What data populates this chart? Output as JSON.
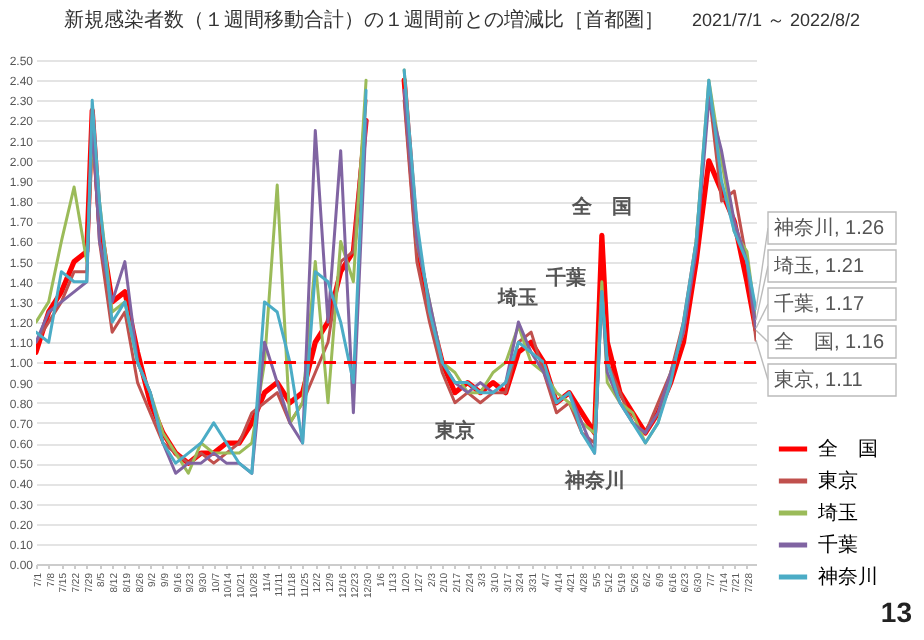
{
  "chart_data": {
    "type": "line",
    "title": "新規感染者数（１週間移動合計）の１週間前との増減比［首都圏］",
    "subtitle": "2021/7/1 ～ 2022/8/2",
    "x": [
      "2021-07-01",
      "2021-07-08",
      "2021-07-15",
      "2021-07-22",
      "2021-07-29",
      "2021-08-01",
      "2021-08-05",
      "2021-08-12",
      "2021-08-19",
      "2021-08-26",
      "2021-09-02",
      "2021-09-09",
      "2021-09-16",
      "2021-09-23",
      "2021-09-30",
      "2021-10-07",
      "2021-10-14",
      "2021-10-21",
      "2021-10-28",
      "2021-11-04",
      "2021-11-11",
      "2021-11-18",
      "2021-11-25",
      "2021-12-02",
      "2021-12-09",
      "2021-12-16",
      "2021-12-23",
      "2021-12-30",
      "2022-01-06",
      "2022-01-13",
      "2022-01-20",
      "2022-01-27",
      "2022-02-03",
      "2022-02-10",
      "2022-02-17",
      "2022-02-24",
      "2022-03-03",
      "2022-03-10",
      "2022-03-17",
      "2022-03-24",
      "2022-03-31",
      "2022-04-07",
      "2022-04-14",
      "2022-04-21",
      "2022-04-28",
      "2022-05-05",
      "2022-05-09",
      "2022-05-12",
      "2022-05-19",
      "2022-05-26",
      "2022-06-02",
      "2022-06-09",
      "2022-06-16",
      "2022-06-23",
      "2022-06-30",
      "2022-07-07",
      "2022-07-14",
      "2022-07-21",
      "2022-07-28",
      "2022-08-02"
    ],
    "series": [
      {
        "name": "全　国",
        "color": "#ff0000",
        "values": [
          1.05,
          1.25,
          1.35,
          1.5,
          1.55,
          2.25,
          1.7,
          1.3,
          1.35,
          1.05,
          0.8,
          0.65,
          0.55,
          0.5,
          0.55,
          0.55,
          0.6,
          0.6,
          0.7,
          0.85,
          0.9,
          0.8,
          0.85,
          1.1,
          1.2,
          1.45,
          1.55,
          2.2,
          null,
          null,
          2.4,
          1.6,
          1.25,
          1.0,
          0.85,
          0.9,
          0.85,
          0.9,
          0.85,
          1.05,
          1.1,
          1.0,
          0.8,
          0.85,
          0.75,
          0.65,
          1.63,
          1.1,
          0.85,
          0.75,
          0.65,
          0.75,
          0.9,
          1.1,
          1.5,
          2.0,
          1.85,
          1.7,
          1.4,
          1.16
        ]
      },
      {
        "name": "東京",
        "color": "#c0504d",
        "values": [
          1.1,
          1.2,
          1.3,
          1.45,
          1.45,
          2.2,
          1.6,
          1.15,
          1.25,
          0.9,
          0.75,
          0.6,
          0.55,
          0.5,
          0.55,
          0.5,
          0.55,
          0.6,
          0.75,
          0.8,
          0.85,
          0.7,
          0.8,
          0.95,
          1.1,
          1.5,
          1.55,
          2.3,
          null,
          null,
          2.3,
          1.5,
          1.2,
          0.95,
          0.8,
          0.85,
          0.8,
          0.85,
          0.85,
          1.1,
          1.15,
          0.95,
          0.75,
          0.8,
          0.65,
          0.6,
          1.35,
          1.0,
          0.85,
          0.7,
          0.65,
          0.8,
          0.95,
          1.2,
          1.6,
          2.35,
          1.8,
          1.85,
          1.5,
          1.11
        ]
      },
      {
        "name": "埼玉",
        "color": "#9bbb59",
        "values": [
          1.2,
          1.3,
          1.6,
          1.87,
          1.5,
          2.1,
          1.8,
          1.25,
          1.3,
          1.0,
          0.85,
          0.65,
          0.55,
          0.45,
          0.6,
          0.55,
          0.55,
          0.55,
          0.6,
          1.0,
          1.88,
          0.7,
          0.8,
          1.5,
          0.8,
          1.6,
          1.4,
          2.4,
          null,
          null,
          2.45,
          1.6,
          1.3,
          1.0,
          0.95,
          0.85,
          0.85,
          0.95,
          1.0,
          1.18,
          1.0,
          0.95,
          0.85,
          0.8,
          0.7,
          0.65,
          1.4,
          0.9,
          0.8,
          0.75,
          0.6,
          0.7,
          0.95,
          1.15,
          1.6,
          2.4,
          2.0,
          1.65,
          1.55,
          1.21
        ]
      },
      {
        "name": "千葉",
        "color": "#8064a2",
        "values": [
          1.1,
          1.25,
          1.3,
          1.35,
          1.4,
          2.2,
          1.6,
          1.3,
          1.5,
          1.0,
          0.85,
          0.6,
          0.45,
          0.5,
          0.5,
          0.55,
          0.5,
          0.5,
          0.45,
          1.1,
          0.9,
          0.7,
          0.6,
          2.15,
          1.2,
          2.05,
          0.75,
          2.2,
          null,
          null,
          2.35,
          1.6,
          1.3,
          1.0,
          0.9,
          0.85,
          0.9,
          0.85,
          0.9,
          1.2,
          1.05,
          0.95,
          0.8,
          0.85,
          0.7,
          0.55,
          1.35,
          0.95,
          0.8,
          0.7,
          0.65,
          0.75,
          0.95,
          1.15,
          1.55,
          2.3,
          2.05,
          1.7,
          1.5,
          1.17
        ]
      },
      {
        "name": "神奈川",
        "color": "#4bacc6",
        "values": [
          1.15,
          1.1,
          1.45,
          1.4,
          1.4,
          2.3,
          1.8,
          1.2,
          1.3,
          1.0,
          0.85,
          0.6,
          0.5,
          0.55,
          0.6,
          0.7,
          0.6,
          0.5,
          0.45,
          1.3,
          1.25,
          1.0,
          0.6,
          1.45,
          1.4,
          1.2,
          0.9,
          2.35,
          null,
          null,
          2.45,
          1.7,
          1.25,
          1.0,
          0.9,
          0.9,
          0.85,
          0.85,
          0.9,
          1.1,
          1.05,
          1.0,
          0.8,
          0.85,
          0.65,
          0.55,
          1.35,
          1.0,
          0.8,
          0.7,
          0.6,
          0.7,
          0.9,
          1.2,
          1.6,
          2.4,
          1.9,
          1.65,
          1.5,
          1.26
        ]
      }
    ],
    "xlim": [
      "2021-07-01",
      "2022-08-02"
    ],
    "xticks": [
      {
        "value": "2021-07-01",
        "label": "7/1"
      },
      {
        "value": "2021-07-08",
        "label": "7/8"
      },
      {
        "value": "2021-07-15",
        "label": "7/15"
      },
      {
        "value": "2021-07-22",
        "label": "7/22"
      },
      {
        "value": "2021-07-29",
        "label": "7/29"
      },
      {
        "value": "2021-08-05",
        "label": "8/5"
      },
      {
        "value": "2021-08-12",
        "label": "8/12"
      },
      {
        "value": "2021-08-19",
        "label": "8/19"
      },
      {
        "value": "2021-08-26",
        "label": "8/26"
      },
      {
        "value": "2021-09-02",
        "label": "9/2"
      },
      {
        "value": "2021-09-09",
        "label": "9/9"
      },
      {
        "value": "2021-09-16",
        "label": "9/16"
      },
      {
        "value": "2021-09-23",
        "label": "9/23"
      },
      {
        "value": "2021-09-30",
        "label": "9/30"
      },
      {
        "value": "2021-10-07",
        "label": "10/7"
      },
      {
        "value": "2021-10-14",
        "label": "10/14"
      },
      {
        "value": "2021-10-21",
        "label": "10/21"
      },
      {
        "value": "2021-10-28",
        "label": "10/28"
      },
      {
        "value": "2021-11-04",
        "label": "11/4"
      },
      {
        "value": "2021-11-11",
        "label": "11/11"
      },
      {
        "value": "2021-11-18",
        "label": "11/18"
      },
      {
        "value": "2021-11-25",
        "label": "11/25"
      },
      {
        "value": "2021-12-02",
        "label": "12/2"
      },
      {
        "value": "2021-12-09",
        "label": "12/9"
      },
      {
        "value": "2021-12-16",
        "label": "12/16"
      },
      {
        "value": "2021-12-23",
        "label": "12/23"
      },
      {
        "value": "2021-12-30",
        "label": "12/30"
      },
      {
        "value": "2022-01-06",
        "label": "1/6"
      },
      {
        "value": "2022-01-13",
        "label": "1/13"
      },
      {
        "value": "2022-01-20",
        "label": "1/20"
      },
      {
        "value": "2022-01-27",
        "label": "1/27"
      },
      {
        "value": "2022-02-03",
        "label": "2/3"
      },
      {
        "value": "2022-02-10",
        "label": "2/10"
      },
      {
        "value": "2022-02-17",
        "label": "2/17"
      },
      {
        "value": "2022-02-24",
        "label": "2/24"
      },
      {
        "value": "2022-03-03",
        "label": "3/3"
      },
      {
        "value": "2022-03-10",
        "label": "3/10"
      },
      {
        "value": "2022-03-17",
        "label": "3/17"
      },
      {
        "value": "2022-03-24",
        "label": "3/24"
      },
      {
        "value": "2022-03-31",
        "label": "3/31"
      },
      {
        "value": "2022-04-07",
        "label": "4/7"
      },
      {
        "value": "2022-04-14",
        "label": "4/14"
      },
      {
        "value": "2022-04-21",
        "label": "4/21"
      },
      {
        "value": "2022-04-28",
        "label": "4/28"
      },
      {
        "value": "2022-05-05",
        "label": "5/5"
      },
      {
        "value": "2022-05-12",
        "label": "5/12"
      },
      {
        "value": "2022-05-19",
        "label": "5/19"
      },
      {
        "value": "2022-05-26",
        "label": "5/26"
      },
      {
        "value": "2022-06-02",
        "label": "6/2"
      },
      {
        "value": "2022-06-09",
        "label": "6/9"
      },
      {
        "value": "2022-06-16",
        "label": "6/16"
      },
      {
        "value": "2022-06-23",
        "label": "6/23"
      },
      {
        "value": "2022-06-30",
        "label": "6/30"
      },
      {
        "value": "2022-07-07",
        "label": "7/7"
      },
      {
        "value": "2022-07-14",
        "label": "7/14"
      },
      {
        "value": "2022-07-21",
        "label": "7/21"
      },
      {
        "value": "2022-07-28",
        "label": "7/28"
      }
    ],
    "ylim": [
      0,
      2.5
    ],
    "yticks": [
      {
        "value": 0,
        "label": "0.00"
      },
      {
        "value": 0.1,
        "label": "0.10"
      },
      {
        "value": 0.2,
        "label": "0.20"
      },
      {
        "value": 0.3,
        "label": "0.30"
      },
      {
        "value": 0.4,
        "label": "0.40"
      },
      {
        "value": 0.5,
        "label": "0.50"
      },
      {
        "value": 0.6,
        "label": "0.60"
      },
      {
        "value": 0.7,
        "label": "0.70"
      },
      {
        "value": 0.8,
        "label": "0.80"
      },
      {
        "value": 0.9,
        "label": "0.90"
      },
      {
        "value": 1,
        "label": "1.00"
      },
      {
        "value": 1.1,
        "label": "1.10"
      },
      {
        "value": 1.2,
        "label": "1.20"
      },
      {
        "value": 1.3,
        "label": "1.30"
      },
      {
        "value": 1.4,
        "label": "1.40"
      },
      {
        "value": 1.5,
        "label": "1.50"
      },
      {
        "value": 1.6,
        "label": "1.60"
      },
      {
        "value": 1.7,
        "label": "1.70"
      },
      {
        "value": 1.8,
        "label": "1.80"
      },
      {
        "value": 1.9,
        "label": "1.90"
      },
      {
        "value": 2,
        "label": "2.00"
      },
      {
        "value": 2.1,
        "label": "2.10"
      },
      {
        "value": 2.2,
        "label": "2.20"
      },
      {
        "value": 2.3,
        "label": "2.30"
      },
      {
        "value": 2.4,
        "label": "2.40"
      },
      {
        "value": 2.5,
        "label": "2.50"
      }
    ],
    "ref_lines": [
      {
        "axis": "y",
        "value": 1,
        "color": "#ff0000",
        "line_style": "dashed"
      }
    ],
    "annotations": [
      {
        "text": "全　国",
        "x": "2022-05-09",
        "y": 1.63
      },
      {
        "text": "埼玉",
        "x": "2022-03-24",
        "y": 1.18
      },
      {
        "text": "千葉",
        "x": "2022-03-24",
        "y": 1.2
      },
      {
        "text": "東京",
        "x": "2022-02-17",
        "y": 0.8
      },
      {
        "text": "神奈川",
        "x": "2022-05-05",
        "y": 0.55
      },
      {
        "text": "神奈川, 1.26",
        "x": "2022-08-02",
        "y": 1.26
      },
      {
        "text": "埼玉, 1.21",
        "x": "2022-08-02",
        "y": 1.21
      },
      {
        "text": "千葉, 1.17",
        "x": "2022-08-02",
        "y": 1.17
      },
      {
        "text": "全　国, 1.16",
        "x": "2022-08-02",
        "y": 1.16
      },
      {
        "text": "東京, 1.11",
        "x": "2022-08-02",
        "y": 1.11
      },
      "13"
    ],
    "grid": "y",
    "legend": "bottom right",
    "marker": "none",
    "line_style": "solid"
  }
}
